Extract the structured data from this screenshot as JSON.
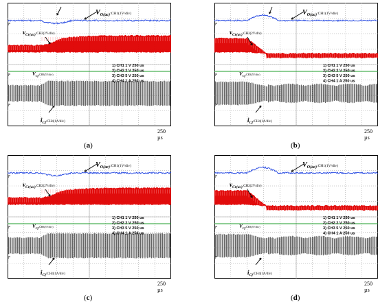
{
  "panels": [
    {
      "id": "a",
      "label": "(a)",
      "time_scale": "250 µs",
      "traces": {
        "ch1": {
          "symbol": "V",
          "sub": "O(ac)",
          "scale": ":CH1(1V/div)"
        },
        "ch2": {
          "symbol": "v",
          "sub": "Cr(ac)",
          "scale": ":CH2(2V/div)"
        },
        "ch3": {
          "symbol": "V",
          "sub": "Cf",
          "scale": ":CH3(5V/div)"
        },
        "ch4": {
          "symbol": "i",
          "sub": "Cf",
          "scale": ":CH4(1A/div)"
        }
      },
      "channel_legend": [
        "1) CH1  1 V    250 us",
        "2) CH2  2 V    250 us",
        "3) CH3  5 V    250 us",
        "4) CH4  1 A    250 us"
      ],
      "transient": "increase"
    },
    {
      "id": "b",
      "label": "(b)",
      "time_scale": "250 µs",
      "traces": {
        "ch1": {
          "symbol": "V",
          "sub": "O(ac)",
          "scale": ":CH1(1V/div)"
        },
        "ch2": {
          "symbol": "v",
          "sub": "Cr(ac)",
          "scale": ":CH2(2V/div)"
        },
        "ch3": {
          "symbol": "V",
          "sub": "Cf",
          "scale": ":CH3(5V/div)"
        },
        "ch4": {
          "symbol": "i",
          "sub": "Cf",
          "scale": ":CH4(1A/div)"
        }
      },
      "channel_legend": [
        "1) CH1  1 V    250 us",
        "2) CH2  2 V    250 us",
        "3) CH3  5 V    250 us",
        "4) CH4  1 A    250 us"
      ],
      "transient": "decrease"
    },
    {
      "id": "c",
      "label": "(c)",
      "time_scale": "250 µs",
      "traces": {
        "ch1": {
          "symbol": "V",
          "sub": "O(ac)",
          "scale": ":CH1(1V/div)"
        },
        "ch2": {
          "symbol": "v",
          "sub": "Cr(ac)",
          "scale": ":CH2(2V/div)"
        },
        "ch3": {
          "symbol": "V",
          "sub": "Cf",
          "scale": ":CH3(5V/div)"
        },
        "ch4": {
          "symbol": "i",
          "sub": "Cf",
          "scale": ":CH4(1A/div)"
        }
      },
      "channel_legend": [
        "1) CH1  1 V    250 us",
        "2) CH2  2 V    250 us",
        "3) CH3  5 V    250 us",
        "4) CH4  1 A    250 us"
      ],
      "transient": "increase"
    },
    {
      "id": "d",
      "label": "(d)",
      "time_scale": "250 µs",
      "traces": {
        "ch1": {
          "symbol": "V",
          "sub": "O(ac)",
          "scale": ":CH1(1V/div)"
        },
        "ch2": {
          "symbol": "v",
          "sub": "Cr(ac)",
          "scale": ":CH2(2V/div)"
        },
        "ch3": {
          "symbol": "V",
          "sub": "Cf",
          "scale": ":CH3(5V/div)"
        },
        "ch4": {
          "symbol": "i",
          "sub": "Cf",
          "scale": ":CH4(1A/div)"
        }
      },
      "channel_legend": [
        "1) CH1  1 V    250 us",
        "2) CH2  2 V    250 us",
        "3) CH3  5 V    250 us",
        "4) CH4  1 A    250 us"
      ],
      "transient": "decrease"
    }
  ],
  "colors": {
    "ch1": "#1a3fe0",
    "ch2": "#e00000",
    "ch3": "#1e9e2a",
    "ch4": "#000000",
    "grid": "#9a9a9a"
  }
}
